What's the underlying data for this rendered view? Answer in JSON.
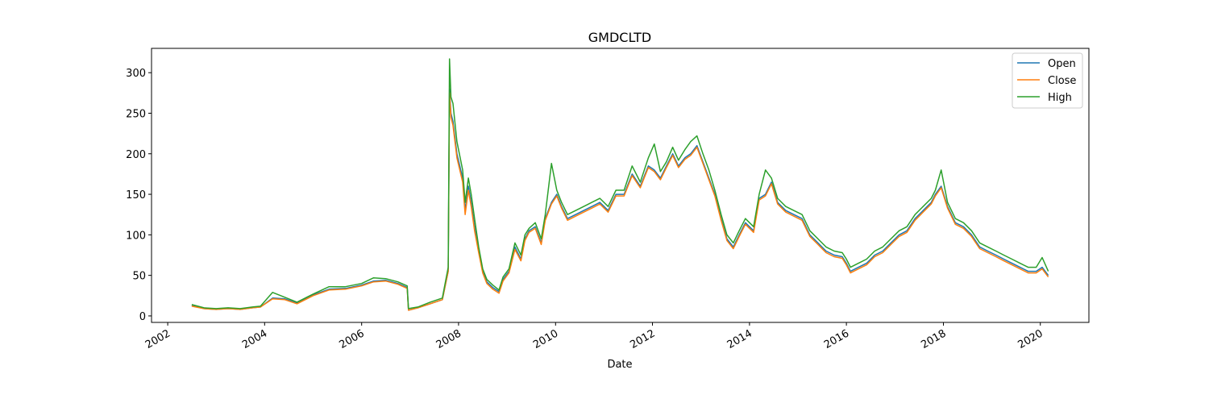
{
  "chart_data": {
    "type": "line",
    "title": "GMDCLTD",
    "xlabel": "Date",
    "ylabel": "",
    "xlim": [
      "2001-09-01",
      "2021-01-01"
    ],
    "ylim": [
      -8,
      330
    ],
    "x_ticks": [
      "2002",
      "2004",
      "2006",
      "2008",
      "2010",
      "2012",
      "2014",
      "2016",
      "2018",
      "2020"
    ],
    "y_ticks": [
      0,
      50,
      100,
      150,
      200,
      250,
      300
    ],
    "grid": false,
    "legend": {
      "placement": "top-right"
    },
    "series": [
      {
        "name": "Open",
        "color": "#1f77b4"
      },
      {
        "name": "Close",
        "color": "#ff7f0e"
      },
      {
        "name": "High",
        "color": "#2ca02c"
      }
    ],
    "x": [
      "2002-07-01",
      "2002-10-01",
      "2003-01-01",
      "2003-04-01",
      "2003-07-01",
      "2003-10-01",
      "2003-12-01",
      "2004-03-01",
      "2004-06-01",
      "2004-09-01",
      "2005-01-01",
      "2005-05-01",
      "2005-09-01",
      "2006-01-01",
      "2006-04-01",
      "2006-07-01",
      "2006-10-01",
      "2006-12-10",
      "2006-12-20",
      "2007-03-01",
      "2007-06-01",
      "2007-09-01",
      "2007-10-15",
      "2007-10-25",
      "2007-11-05",
      "2007-11-20",
      "2007-12-20",
      "2008-02-01",
      "2008-02-20",
      "2008-03-15",
      "2008-04-05",
      "2008-05-01",
      "2008-06-01",
      "2008-07-01",
      "2008-08-01",
      "2008-09-15",
      "2008-11-01",
      "2008-12-01",
      "2009-01-15",
      "2009-03-01",
      "2009-04-15",
      "2009-05-15",
      "2009-06-15",
      "2009-08-01",
      "2009-09-15",
      "2009-10-15",
      "2009-12-01",
      "2010-01-10",
      "2010-02-15",
      "2010-04-01",
      "2010-06-01",
      "2010-08-01",
      "2010-10-01",
      "2010-12-01",
      "2011-02-01",
      "2011-04-01",
      "2011-06-01",
      "2011-08-01",
      "2011-10-01",
      "2011-12-01",
      "2012-01-15",
      "2012-03-01",
      "2012-04-15",
      "2012-06-01",
      "2012-07-15",
      "2012-09-01",
      "2012-10-15",
      "2012-12-01",
      "2013-01-15",
      "2013-03-01",
      "2013-04-15",
      "2013-06-01",
      "2013-07-15",
      "2013-09-01",
      "2013-10-15",
      "2013-12-01",
      "2014-02-01",
      "2014-03-15",
      "2014-05-01",
      "2014-06-15",
      "2014-08-01",
      "2014-10-01",
      "2014-12-01",
      "2015-02-01",
      "2015-04-01",
      "2015-06-01",
      "2015-08-01",
      "2015-10-01",
      "2015-12-01",
      "2016-01-01",
      "2016-02-01",
      "2016-04-01",
      "2016-06-01",
      "2016-08-01",
      "2016-10-01",
      "2016-12-01",
      "2017-02-01",
      "2017-04-01",
      "2017-06-01",
      "2017-08-01",
      "2017-10-01",
      "2017-11-01",
      "2017-12-15",
      "2018-02-01",
      "2018-04-01",
      "2018-06-01",
      "2018-08-01",
      "2018-10-01",
      "2018-12-01",
      "2019-02-01",
      "2019-04-01",
      "2019-06-01",
      "2019-08-01",
      "2019-10-01",
      "2019-12-01",
      "2020-01-15",
      "2020-03-01"
    ],
    "open": [
      13,
      9,
      8,
      9,
      8,
      10,
      11,
      22,
      21,
      16,
      26,
      33,
      34,
      38,
      43,
      44,
      40,
      35,
      7,
      10,
      15,
      20,
      55,
      280,
      250,
      240,
      200,
      170,
      130,
      160,
      140,
      110,
      80,
      55,
      42,
      35,
      30,
      45,
      55,
      85,
      70,
      95,
      105,
      110,
      90,
      120,
      140,
      150,
      135,
      120,
      125,
      130,
      135,
      140,
      130,
      150,
      150,
      175,
      160,
      185,
      180,
      170,
      185,
      200,
      185,
      195,
      200,
      210,
      190,
      170,
      150,
      120,
      95,
      85,
      100,
      115,
      105,
      145,
      150,
      165,
      140,
      130,
      125,
      120,
      100,
      90,
      80,
      75,
      73,
      65,
      55,
      60,
      65,
      75,
      80,
      90,
      100,
      105,
      120,
      130,
      140,
      150,
      160,
      135,
      115,
      110,
      100,
      85,
      80,
      75,
      70,
      65,
      60,
      55,
      55,
      60,
      50
    ],
    "close": [
      12,
      9,
      8,
      9,
      8,
      10,
      11,
      21,
      20,
      15,
      25,
      32,
      33,
      37,
      42,
      43,
      39,
      34,
      7,
      10,
      15,
      20,
      55,
      275,
      245,
      235,
      195,
      165,
      125,
      155,
      135,
      105,
      78,
      53,
      40,
      33,
      28,
      43,
      53,
      82,
      68,
      93,
      103,
      108,
      88,
      118,
      138,
      148,
      133,
      118,
      123,
      128,
      133,
      138,
      128,
      148,
      148,
      173,
      158,
      183,
      178,
      168,
      183,
      198,
      183,
      193,
      198,
      208,
      188,
      168,
      148,
      118,
      93,
      83,
      98,
      113,
      103,
      143,
      148,
      163,
      138,
      128,
      123,
      118,
      98,
      88,
      78,
      73,
      71,
      63,
      53,
      58,
      63,
      73,
      78,
      88,
      98,
      103,
      118,
      128,
      138,
      148,
      158,
      133,
      113,
      108,
      98,
      83,
      78,
      73,
      68,
      63,
      58,
      53,
      53,
      58,
      48
    ],
    "high": [
      14,
      10,
      9,
      10,
      9,
      11,
      12,
      29,
      23,
      17,
      27,
      36,
      36,
      40,
      47,
      46,
      42,
      37,
      9,
      11,
      17,
      22,
      60,
      317,
      270,
      262,
      215,
      180,
      140,
      170,
      150,
      120,
      85,
      58,
      45,
      38,
      32,
      48,
      58,
      90,
      75,
      100,
      108,
      115,
      95,
      125,
      188,
      155,
      140,
      125,
      130,
      135,
      140,
      145,
      135,
      155,
      155,
      185,
      165,
      195,
      212,
      178,
      190,
      208,
      192,
      205,
      215,
      222,
      200,
      180,
      155,
      125,
      100,
      90,
      105,
      120,
      110,
      150,
      180,
      170,
      145,
      135,
      130,
      125,
      105,
      95,
      85,
      80,
      78,
      70,
      60,
      65,
      70,
      80,
      85,
      95,
      105,
      110,
      125,
      135,
      145,
      155,
      180,
      140,
      120,
      115,
      105,
      90,
      85,
      80,
      75,
      70,
      65,
      60,
      60,
      72,
      55
    ]
  }
}
